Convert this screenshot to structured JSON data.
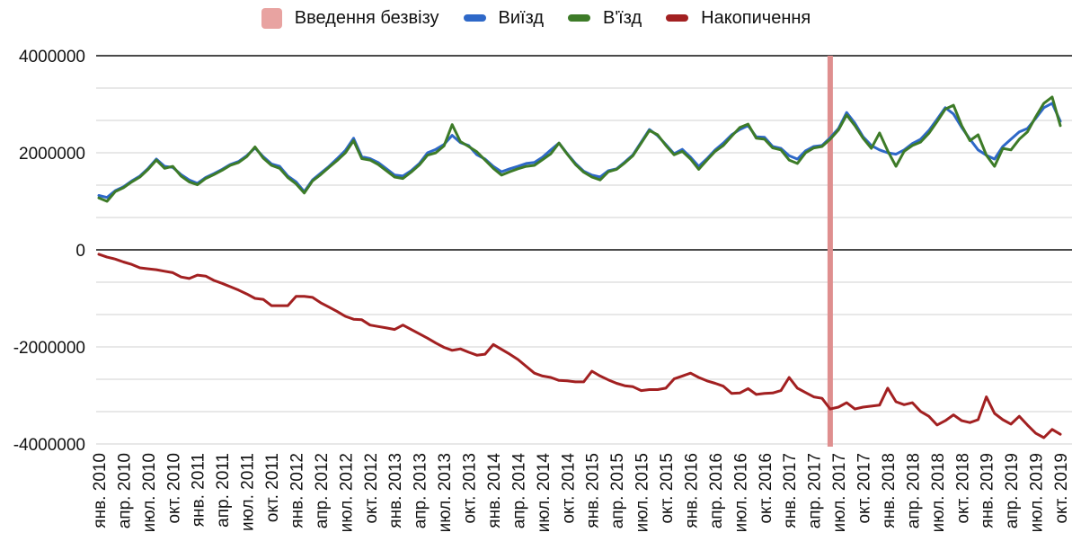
{
  "legend": [
    {
      "label": "Введення безвізу",
      "color": "#e8a3a1",
      "swatch": "band"
    },
    {
      "label": "Виїзд",
      "color": "#2e68c8",
      "swatch": "dash"
    },
    {
      "label": "В'їзд",
      "color": "#3d7b28",
      "swatch": "dash"
    },
    {
      "label": "Накопичення",
      "color": "#a22021",
      "swatch": "dash"
    }
  ],
  "chart_data": {
    "type": "line",
    "title": "",
    "xlabel": "",
    "ylabel": "",
    "grid": true,
    "ylim": [
      -4000000,
      4000000
    ],
    "y_minor_step": 666667,
    "y_tick_values": [
      4000000,
      2000000,
      0,
      -2000000,
      -4000000
    ],
    "y_tick_labels": [
      "4000000",
      "2000000",
      "0",
      "-2000000",
      "-4000000"
    ],
    "x_start_month": "янв. 2010",
    "x_end_month": "окт. 2019",
    "x_tick_labels": [
      "янв. 2010",
      "апр. 2010",
      "июл. 2010",
      "окт. 2010",
      "янв. 2011",
      "апр. 2011",
      "июл. 2011",
      "окт. 2011",
      "янв. 2012",
      "апр. 2012",
      "июл. 2012",
      "окт. 2012",
      "янв. 2013",
      "апр. 2013",
      "июл. 2013",
      "окт. 2013",
      "янв. 2014",
      "апр. 2014",
      "июл. 2014",
      "окт. 2014",
      "янв. 2015",
      "апр. 2015",
      "июл. 2015",
      "окт. 2015",
      "янв. 2016",
      "апр. 2016",
      "июл. 2016",
      "окт. 2016",
      "янв. 2017",
      "апр. 2017",
      "июл. 2017",
      "окт. 2017",
      "янв. 2018",
      "апр. 2018",
      "июл. 2018",
      "окт. 2018",
      "янв. 2019",
      "апр. 2019",
      "июл. 2019",
      "окт. 2019"
    ],
    "annotation_band": {
      "label": "Введення безвізу",
      "month_index": 89,
      "month": "июн. 2017",
      "color": "#df8f8f"
    },
    "series": [
      {
        "name": "Виїзд",
        "color": "#2e68c8",
        "values": [
          1120000,
          1080000,
          1220000,
          1300000,
          1420000,
          1520000,
          1680000,
          1870000,
          1720000,
          1700000,
          1550000,
          1440000,
          1370000,
          1490000,
          1570000,
          1660000,
          1760000,
          1820000,
          1940000,
          2100000,
          1920000,
          1770000,
          1720000,
          1520000,
          1400000,
          1200000,
          1440000,
          1580000,
          1720000,
          1880000,
          2050000,
          2300000,
          1920000,
          1880000,
          1800000,
          1670000,
          1540000,
          1520000,
          1630000,
          1780000,
          2000000,
          2070000,
          2170000,
          2360000,
          2210000,
          2150000,
          1960000,
          1870000,
          1720000,
          1610000,
          1670000,
          1720000,
          1780000,
          1800000,
          1910000,
          2060000,
          2200000,
          1980000,
          1780000,
          1620000,
          1540000,
          1500000,
          1630000,
          1670000,
          1810000,
          1960000,
          2220000,
          2480000,
          2350000,
          2170000,
          1980000,
          2070000,
          1910000,
          1720000,
          1880000,
          2060000,
          2200000,
          2370000,
          2480000,
          2560000,
          2330000,
          2320000,
          2130000,
          2090000,
          1940000,
          1870000,
          2040000,
          2130000,
          2150000,
          2310000,
          2500000,
          2830000,
          2610000,
          2330000,
          2150000,
          2060000,
          2000000,
          1970000,
          2060000,
          2190000,
          2280000,
          2460000,
          2690000,
          2930000,
          2800000,
          2520000,
          2280000,
          2060000,
          1950000,
          1870000,
          2130000,
          2280000,
          2430000,
          2500000,
          2710000,
          2930000,
          3020000,
          2650000
        ]
      },
      {
        "name": "В'їзд",
        "color": "#3d7b28",
        "values": [
          1070000,
          1000000,
          1200000,
          1280000,
          1400000,
          1500000,
          1660000,
          1850000,
          1680000,
          1720000,
          1520000,
          1400000,
          1340000,
          1470000,
          1550000,
          1640000,
          1740000,
          1800000,
          1920000,
          2120000,
          1890000,
          1740000,
          1680000,
          1490000,
          1360000,
          1170000,
          1420000,
          1550000,
          1700000,
          1840000,
          2000000,
          2250000,
          1880000,
          1850000,
          1760000,
          1630000,
          1500000,
          1470000,
          1600000,
          1750000,
          1950000,
          2000000,
          2140000,
          2580000,
          2230000,
          2130000,
          2020000,
          1850000,
          1680000,
          1540000,
          1610000,
          1670000,
          1720000,
          1740000,
          1860000,
          1980000,
          2200000,
          1970000,
          1760000,
          1600000,
          1500000,
          1440000,
          1610000,
          1660000,
          1790000,
          1940000,
          2200000,
          2460000,
          2370000,
          2150000,
          1960000,
          2030000,
          1870000,
          1660000,
          1850000,
          2030000,
          2150000,
          2340000,
          2520000,
          2590000,
          2300000,
          2280000,
          2100000,
          2060000,
          1850000,
          1780000,
          2000000,
          2100000,
          2130000,
          2280000,
          2470000,
          2780000,
          2560000,
          2300000,
          2090000,
          2410000,
          2040000,
          1720000,
          2030000,
          2150000,
          2220000,
          2400000,
          2640000,
          2900000,
          2980000,
          2560000,
          2250000,
          2370000,
          1950000,
          1720000,
          2090000,
          2060000,
          2280000,
          2430000,
          2740000,
          3020000,
          3150000,
          2560000
        ]
      },
      {
        "name": "Накопичення",
        "color": "#a22021",
        "values": [
          -90000,
          -150000,
          -190000,
          -250000,
          -300000,
          -370000,
          -390000,
          -410000,
          -440000,
          -470000,
          -560000,
          -590000,
          -520000,
          -540000,
          -630000,
          -690000,
          -760000,
          -830000,
          -910000,
          -1000000,
          -1020000,
          -1150000,
          -1150000,
          -1150000,
          -960000,
          -960000,
          -980000,
          -1090000,
          -1180000,
          -1270000,
          -1370000,
          -1430000,
          -1440000,
          -1550000,
          -1580000,
          -1610000,
          -1640000,
          -1550000,
          -1640000,
          -1730000,
          -1820000,
          -1920000,
          -2010000,
          -2070000,
          -2040000,
          -2110000,
          -2170000,
          -2150000,
          -1950000,
          -2050000,
          -2150000,
          -2260000,
          -2400000,
          -2540000,
          -2600000,
          -2630000,
          -2690000,
          -2700000,
          -2720000,
          -2720000,
          -2500000,
          -2600000,
          -2680000,
          -2750000,
          -2800000,
          -2820000,
          -2900000,
          -2880000,
          -2880000,
          -2850000,
          -2660000,
          -2600000,
          -2540000,
          -2630000,
          -2700000,
          -2750000,
          -2810000,
          -2960000,
          -2950000,
          -2860000,
          -2980000,
          -2960000,
          -2950000,
          -2900000,
          -2630000,
          -2850000,
          -2940000,
          -3030000,
          -3060000,
          -3280000,
          -3240000,
          -3150000,
          -3280000,
          -3240000,
          -3220000,
          -3200000,
          -2850000,
          -3130000,
          -3190000,
          -3150000,
          -3330000,
          -3430000,
          -3610000,
          -3520000,
          -3400000,
          -3520000,
          -3560000,
          -3500000,
          -3030000,
          -3370000,
          -3500000,
          -3590000,
          -3430000,
          -3610000,
          -3780000,
          -3870000,
          -3700000,
          -3800000
        ]
      }
    ]
  }
}
